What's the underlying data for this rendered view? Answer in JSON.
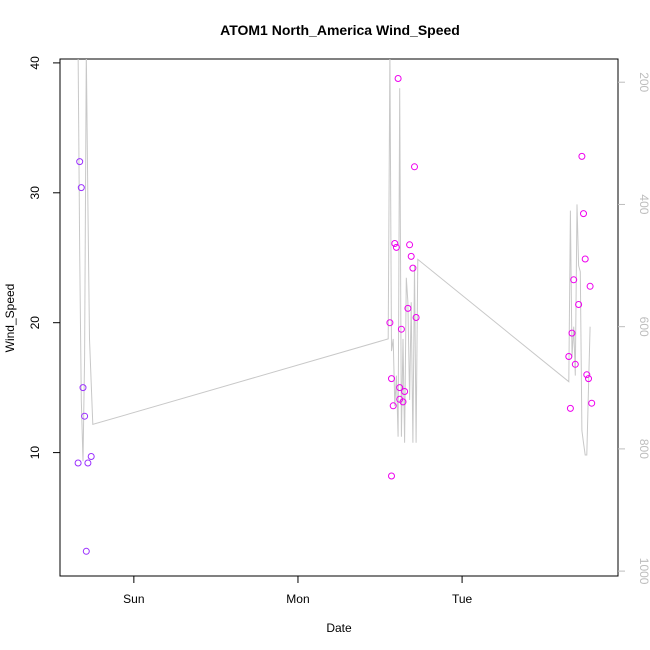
{
  "chart_data": {
    "type": "scatter",
    "title": "ATOM1 North_America Wind_Speed",
    "xlabel": "Date",
    "ylabel": "Wind_Speed",
    "x_ticks": [
      {
        "label": "Sun",
        "value": 1.0
      },
      {
        "label": "Mon",
        "value": 2.0
      },
      {
        "label": "Tue",
        "value": 3.0
      }
    ],
    "xlim": [
      0.55,
      3.95
    ],
    "ylim": [
      0.5,
      40.3
    ],
    "y_ticks": [
      10,
      20,
      30,
      40
    ],
    "y2_ticks": [
      200,
      400,
      600,
      800,
      1000
    ],
    "y2lim": [
      1008,
      162
    ],
    "grid": false,
    "colors": {
      "points_early": "#9b30ff",
      "points_late": "#ee00ee",
      "line": "#c8c8c8",
      "right_axis": "#bdbdbd"
    },
    "series": [
      {
        "values": [
          {
            "x": 0.67,
            "y": 32.4,
            "c": "#9b30ff"
          },
          {
            "x": 0.68,
            "y": 30.4,
            "c": "#9b30ff"
          },
          {
            "x": 0.69,
            "y": 15.0,
            "c": "#9b30ff"
          },
          {
            "x": 0.7,
            "y": 12.8,
            "c": "#9b30ff"
          },
          {
            "x": 0.66,
            "y": 9.2,
            "c": "#9b30ff"
          },
          {
            "x": 0.72,
            "y": 9.2,
            "c": "#9b30ff"
          },
          {
            "x": 0.74,
            "y": 9.7,
            "c": "#9b30ff"
          },
          {
            "x": 0.71,
            "y": 2.4,
            "c": "#9b30ff"
          },
          {
            "x": 2.56,
            "y": 20.0,
            "c": "#ee00ee"
          },
          {
            "x": 2.57,
            "y": 15.7,
            "c": "#ee00ee"
          },
          {
            "x": 2.58,
            "y": 13.6,
            "c": "#ee00ee"
          },
          {
            "x": 2.57,
            "y": 8.2,
            "c": "#ee00ee"
          },
          {
            "x": 2.59,
            "y": 26.1,
            "c": "#ee00ee"
          },
          {
            "x": 2.6,
            "y": 25.8,
            "c": "#ee00ee"
          },
          {
            "x": 2.61,
            "y": 38.8,
            "c": "#ee00ee"
          },
          {
            "x": 2.62,
            "y": 15.0,
            "c": "#ee00ee"
          },
          {
            "x": 2.62,
            "y": 14.1,
            "c": "#ee00ee"
          },
          {
            "x": 2.63,
            "y": 19.5,
            "c": "#ee00ee"
          },
          {
            "x": 2.64,
            "y": 13.9,
            "c": "#ee00ee"
          },
          {
            "x": 2.65,
            "y": 14.7,
            "c": "#ee00ee"
          },
          {
            "x": 2.67,
            "y": 21.1,
            "c": "#ee00ee"
          },
          {
            "x": 2.68,
            "y": 26.0,
            "c": "#ee00ee"
          },
          {
            "x": 2.69,
            "y": 25.1,
            "c": "#ee00ee"
          },
          {
            "x": 2.7,
            "y": 24.2,
            "c": "#ee00ee"
          },
          {
            "x": 2.71,
            "y": 32.0,
            "c": "#ee00ee"
          },
          {
            "x": 2.72,
            "y": 20.4,
            "c": "#ee00ee"
          },
          {
            "x": 3.65,
            "y": 17.4,
            "c": "#ee00ee"
          },
          {
            "x": 3.66,
            "y": 13.4,
            "c": "#ee00ee"
          },
          {
            "x": 3.67,
            "y": 19.2,
            "c": "#ee00ee"
          },
          {
            "x": 3.68,
            "y": 23.3,
            "c": "#ee00ee"
          },
          {
            "x": 3.69,
            "y": 16.8,
            "c": "#ee00ee"
          },
          {
            "x": 3.71,
            "y": 21.4,
            "c": "#ee00ee"
          },
          {
            "x": 3.73,
            "y": 32.8,
            "c": "#ee00ee"
          },
          {
            "x": 3.74,
            "y": 28.4,
            "c": "#ee00ee"
          },
          {
            "x": 3.75,
            "y": 24.9,
            "c": "#ee00ee"
          },
          {
            "x": 3.76,
            "y": 16.0,
            "c": "#ee00ee"
          },
          {
            "x": 3.77,
            "y": 15.7,
            "c": "#ee00ee"
          },
          {
            "x": 3.78,
            "y": 22.8,
            "c": "#ee00ee"
          },
          {
            "x": 3.79,
            "y": 13.8,
            "c": "#ee00ee"
          }
        ]
      },
      {
        "axis": "right",
        "values": [
          {
            "x": 0.66,
            "y": 150
          },
          {
            "x": 0.67,
            "y": 480
          },
          {
            "x": 0.68,
            "y": 720
          },
          {
            "x": 0.69,
            "y": 820
          },
          {
            "x": 0.7,
            "y": 650
          },
          {
            "x": 0.71,
            "y": 150
          },
          {
            "x": 0.72,
            "y": 400
          },
          {
            "x": 0.73,
            "y": 620
          },
          {
            "x": 0.75,
            "y": 760
          },
          {
            "x": 2.55,
            "y": 620
          },
          {
            "x": 2.56,
            "y": 150
          },
          {
            "x": 2.57,
            "y": 640
          },
          {
            "x": 2.58,
            "y": 620
          },
          {
            "x": 2.59,
            "y": 730
          },
          {
            "x": 2.6,
            "y": 680
          },
          {
            "x": 2.61,
            "y": 780
          },
          {
            "x": 2.62,
            "y": 210
          },
          {
            "x": 2.63,
            "y": 780
          },
          {
            "x": 2.64,
            "y": 620
          },
          {
            "x": 2.65,
            "y": 790
          },
          {
            "x": 2.66,
            "y": 520
          },
          {
            "x": 2.67,
            "y": 560
          },
          {
            "x": 2.68,
            "y": 720
          },
          {
            "x": 2.69,
            "y": 560
          },
          {
            "x": 2.7,
            "y": 790
          },
          {
            "x": 2.71,
            "y": 500
          },
          {
            "x": 2.72,
            "y": 790
          },
          {
            "x": 2.73,
            "y": 490
          },
          {
            "x": 3.65,
            "y": 690
          },
          {
            "x": 3.66,
            "y": 410
          },
          {
            "x": 3.67,
            "y": 650
          },
          {
            "x": 3.68,
            "y": 600
          },
          {
            "x": 3.69,
            "y": 680
          },
          {
            "x": 3.7,
            "y": 400
          },
          {
            "x": 3.71,
            "y": 500
          },
          {
            "x": 3.72,
            "y": 510
          },
          {
            "x": 3.73,
            "y": 770
          },
          {
            "x": 3.74,
            "y": 790
          },
          {
            "x": 3.75,
            "y": 810
          },
          {
            "x": 3.76,
            "y": 810
          },
          {
            "x": 3.77,
            "y": 700
          },
          {
            "x": 3.78,
            "y": 600
          }
        ]
      }
    ]
  }
}
